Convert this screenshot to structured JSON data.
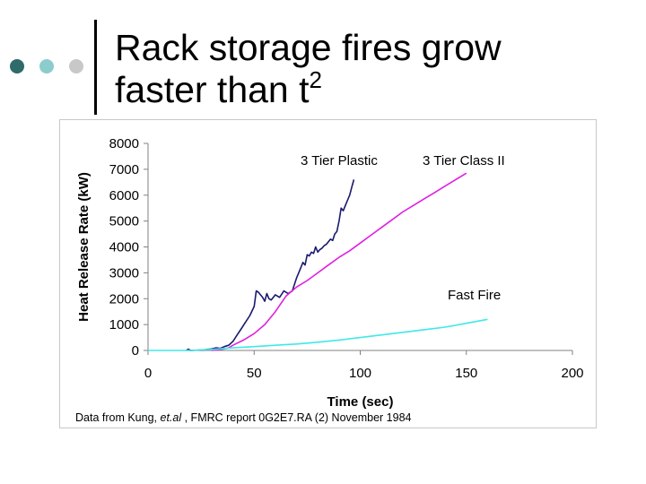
{
  "slide": {
    "title_line1": "Rack storage fires grow",
    "title_line2": "faster than t",
    "title_superscript": "2",
    "caption_prefix": "Data from Kung, ",
    "caption_italic": "et.al",
    "caption_suffix": " , FMRC report 0G2E7.RA (2) November 1984"
  },
  "decor": {
    "dot_colors": [
      "#2f6b6b",
      "#8ccccc",
      "#c8c8c8"
    ]
  },
  "chart_data": {
    "type": "line",
    "title": "",
    "xlabel": "Time (sec)",
    "ylabel": "Heat Release Rate (kW)",
    "xlim": [
      0,
      200
    ],
    "ylim": [
      0,
      8000
    ],
    "xticks": [
      0,
      50,
      100,
      150,
      200
    ],
    "yticks": [
      0,
      1000,
      2000,
      3000,
      4000,
      5000,
      6000,
      7000,
      8000
    ],
    "grid": false,
    "series": [
      {
        "name": "3 Tier Plastic",
        "color": "#1a1a6e",
        "x": [
          18,
          19,
          20,
          26,
          30,
          32,
          34,
          36,
          38,
          40,
          42,
          44,
          46,
          48,
          50,
          51,
          52,
          53,
          54,
          55,
          56,
          57,
          58,
          60,
          62,
          64,
          66,
          68,
          70,
          71,
          72,
          73,
          74,
          75,
          76,
          77,
          78,
          79,
          80,
          81,
          82,
          83,
          84,
          85,
          86,
          87,
          88,
          89,
          90,
          91,
          92,
          93,
          94,
          95,
          96,
          97
        ],
        "y": [
          0,
          50,
          0,
          20,
          60,
          100,
          80,
          150,
          200,
          350,
          600,
          850,
          1100,
          1350,
          1700,
          2300,
          2250,
          2150,
          2050,
          1900,
          2200,
          2000,
          1950,
          2150,
          2050,
          2300,
          2200,
          2300,
          2800,
          3000,
          3200,
          3400,
          3300,
          3700,
          3650,
          3800,
          3750,
          4000,
          3800,
          3900,
          3950,
          4050,
          4100,
          4200,
          4300,
          4250,
          4500,
          4600,
          5000,
          5500,
          5400,
          5600,
          5800,
          6000,
          6300,
          6600
        ]
      },
      {
        "name": "3 Tier Class II",
        "color": "#e020e0",
        "x": [
          30,
          35,
          38,
          40,
          45,
          50,
          55,
          60,
          65,
          70,
          75,
          80,
          85,
          90,
          95,
          100,
          105,
          110,
          115,
          120,
          125,
          130,
          135,
          140,
          145,
          150
        ],
        "y": [
          0,
          50,
          100,
          200,
          400,
          650,
          1000,
          1500,
          2100,
          2450,
          2700,
          3000,
          3300,
          3600,
          3850,
          4150,
          4450,
          4750,
          5050,
          5350,
          5600,
          5850,
          6100,
          6350,
          6600,
          6850
        ]
      },
      {
        "name": "Fast Fire",
        "color": "#40e8e8",
        "x": [
          0,
          20,
          30,
          40,
          50,
          60,
          70,
          80,
          90,
          100,
          110,
          120,
          130,
          140,
          150,
          160
        ],
        "y": [
          0,
          0,
          40,
          100,
          150,
          200,
          250,
          320,
          400,
          500,
          600,
          700,
          800,
          900,
          1050,
          1200
        ]
      }
    ]
  }
}
